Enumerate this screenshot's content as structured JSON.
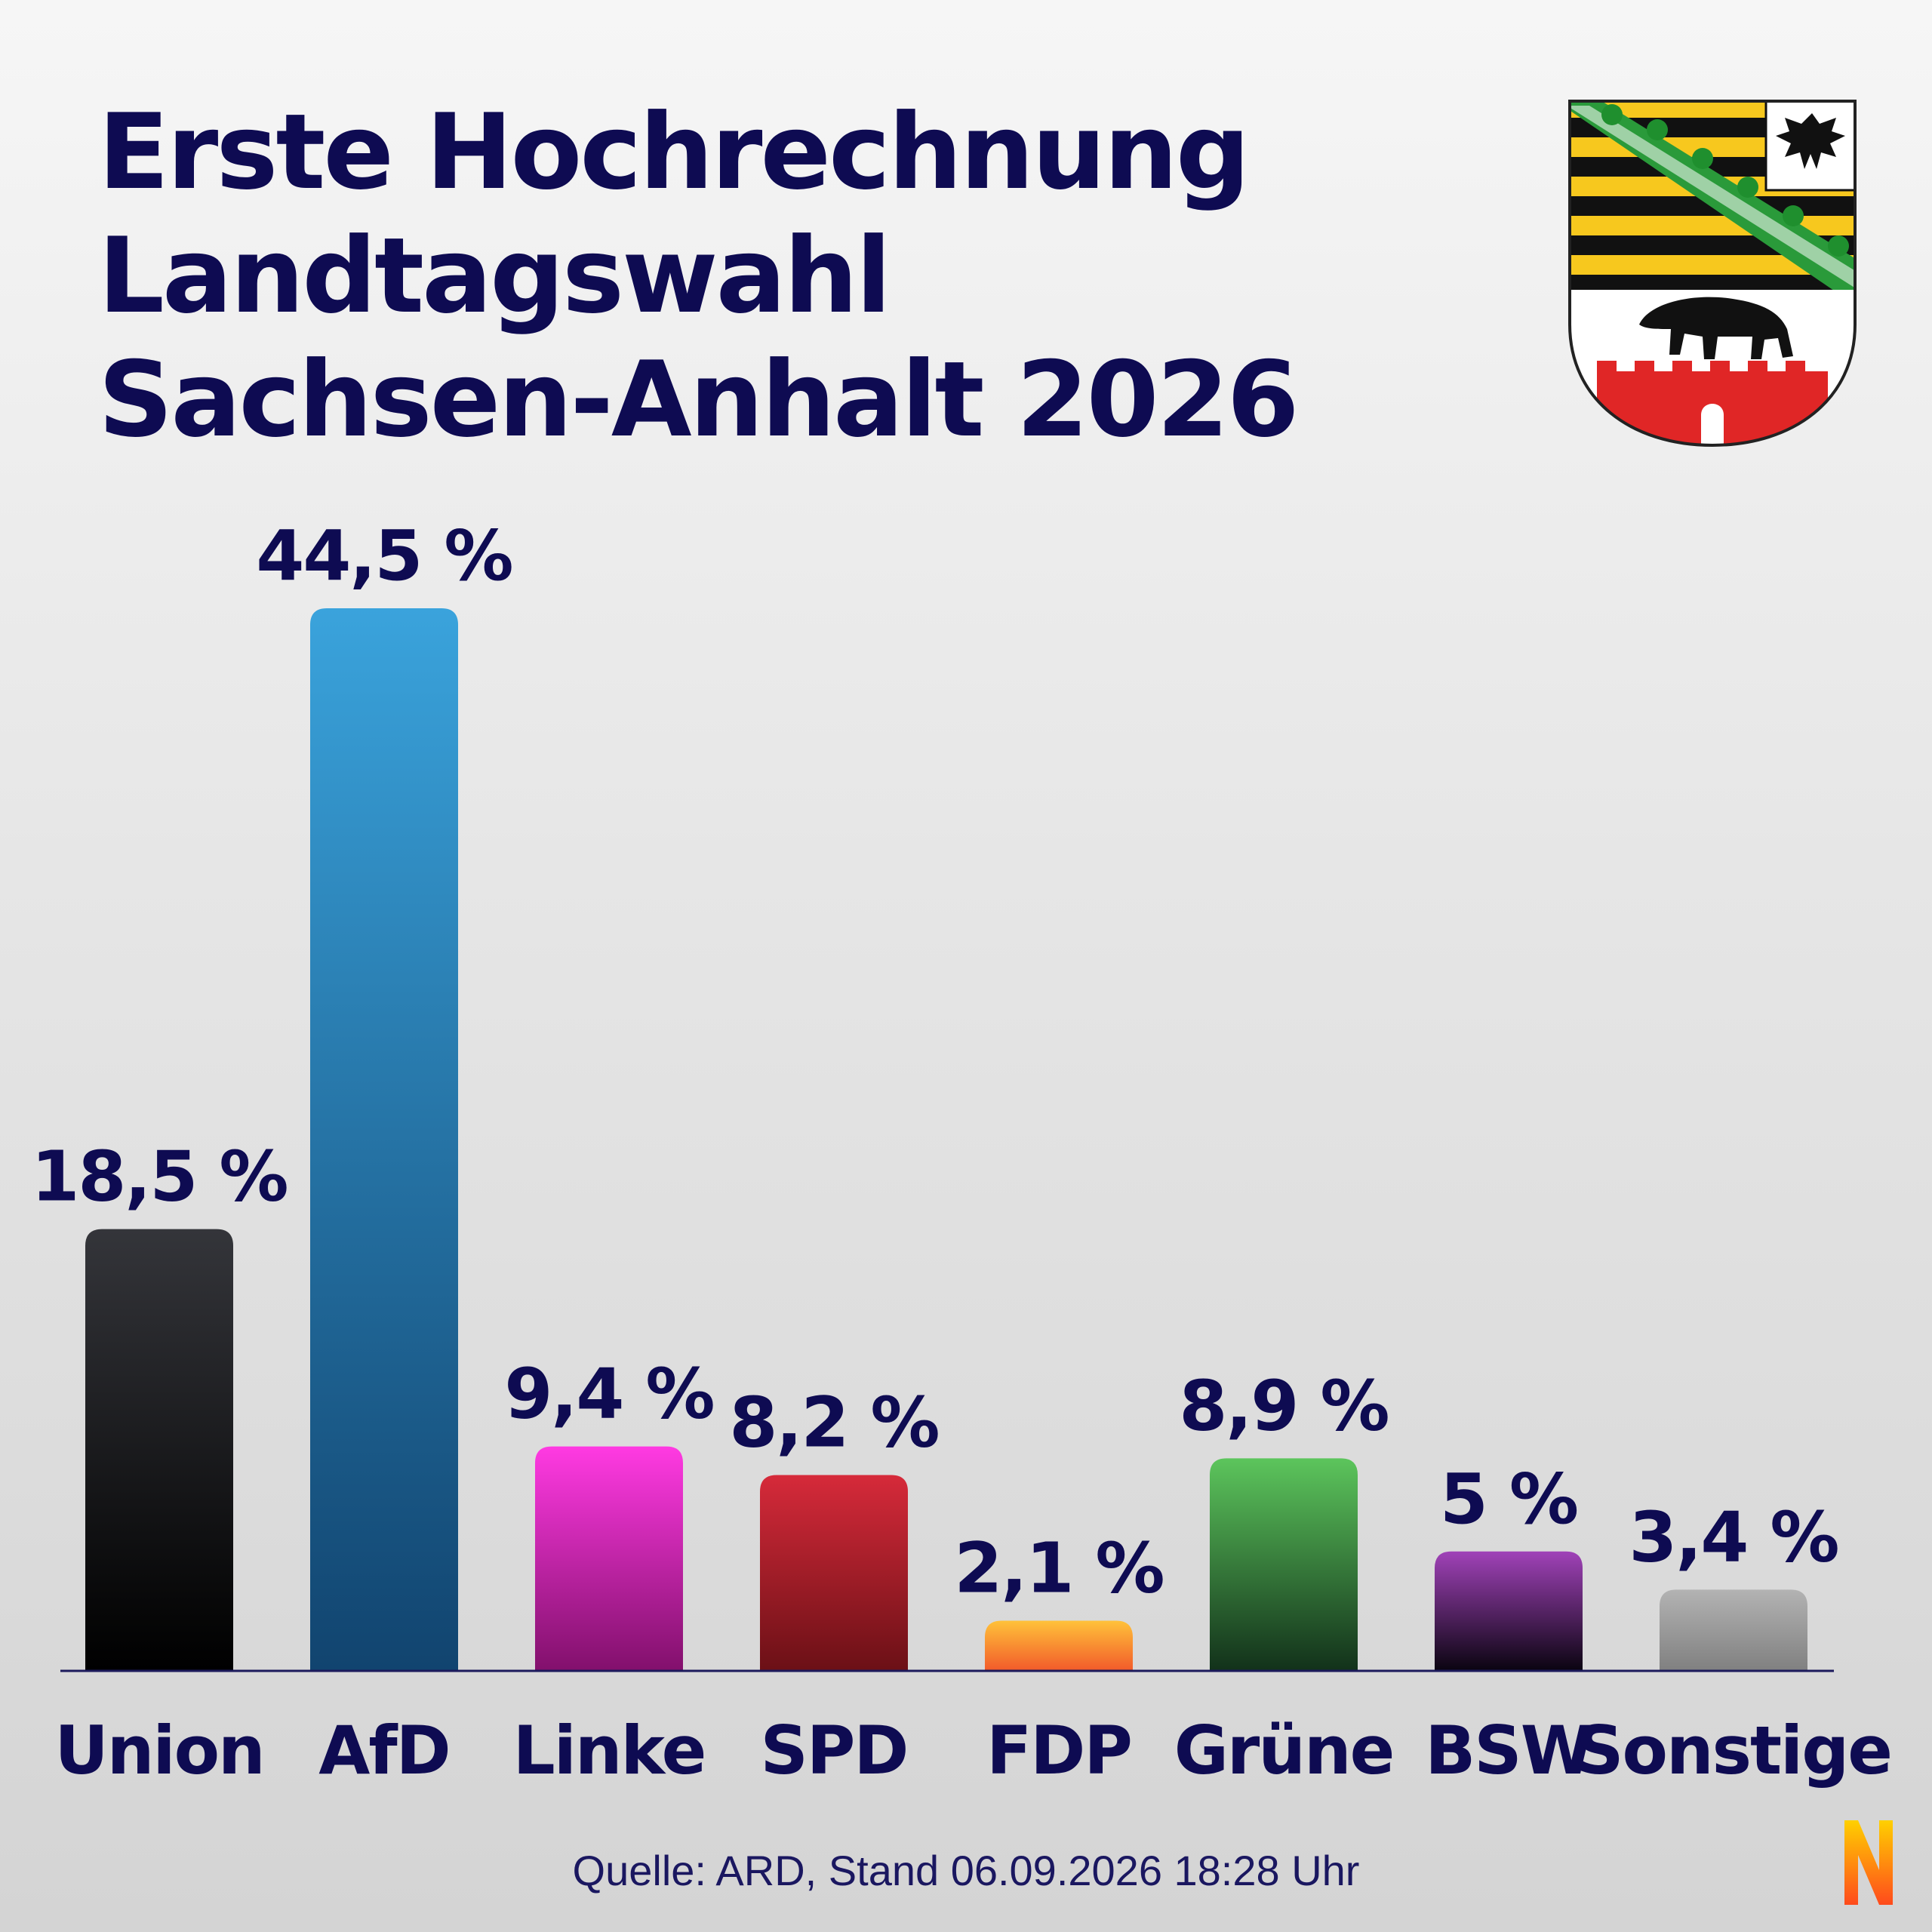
{
  "title_lines": [
    "Erste Hochrechnung",
    "Landtagswahl",
    "Sachsen-Anhalt 2026"
  ],
  "source": "Quelle: ARD, Stand 06.09.2026 18:28 Uhr",
  "logo_text": "N",
  "colors": {
    "title": "#0e0b52",
    "union": [
      "#34353a",
      "#000000"
    ],
    "afd": [
      "#3aa3dc",
      "#11446f"
    ],
    "linke": [
      "#ff3ae2",
      "#82106c"
    ],
    "spd": [
      "#d62a3a",
      "#6b1016"
    ],
    "fdp": [
      "#ffc23a",
      "#f25a2a"
    ],
    "gruene": [
      "#5cc55c",
      "#12311a"
    ],
    "bsw": [
      "#a042b8",
      "#0a0410"
    ],
    "sonstige": [
      "#b3b3b3",
      "#808080"
    ]
  },
  "chart_data": {
    "type": "bar",
    "title": "Erste Hochrechnung Landtagswahl Sachsen-Anhalt 2026",
    "categories": [
      "Union",
      "AfD",
      "Linke",
      "SPD",
      "FDP",
      "Grüne",
      "BSW",
      "Sonstige"
    ],
    "values": [
      18.5,
      44.5,
      9.4,
      8.2,
      2.1,
      8.9,
      5,
      3.4
    ],
    "value_labels": [
      "18,5 %",
      "44,5 %",
      "9,4 %",
      "8,2 %",
      "2,1 %",
      "8,9 %",
      "5 %",
      "3,4 %"
    ],
    "color_keys": [
      "union",
      "afd",
      "linke",
      "spd",
      "fdp",
      "gruene",
      "bsw",
      "sonstige"
    ],
    "unit": "%",
    "xlabel": "",
    "ylabel": "",
    "ylim": [
      0,
      44.5
    ],
    "grid": false,
    "legend": "none"
  }
}
